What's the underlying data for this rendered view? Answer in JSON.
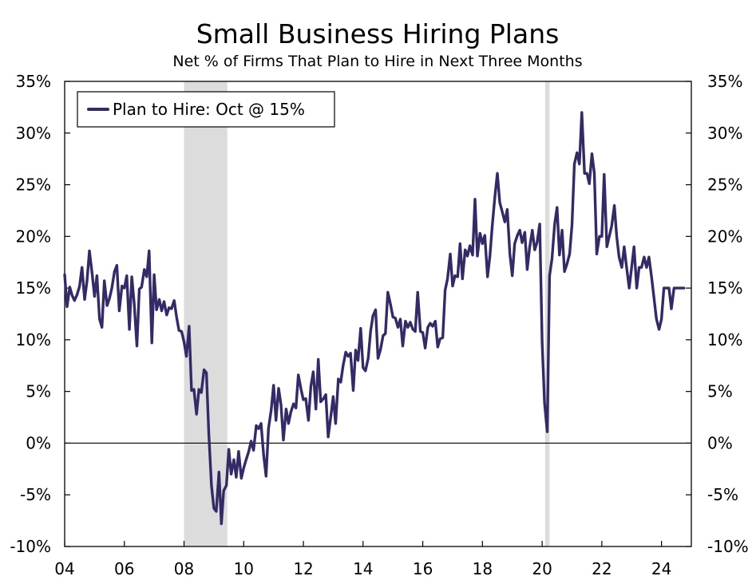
{
  "chart_data": {
    "type": "line",
    "title": "Small Business Hiring Plans",
    "subtitle": "Net % of Firms That Plan to Hire in Next Three Months",
    "xlabel": "",
    "ylabel": "",
    "xlim": [
      2004.0,
      2025.0
    ],
    "ylim": [
      -10,
      35
    ],
    "x_ticks": [
      {
        "value": 2004,
        "label": "04"
      },
      {
        "value": 2006,
        "label": "06"
      },
      {
        "value": 2008,
        "label": "08"
      },
      {
        "value": 2010,
        "label": "10"
      },
      {
        "value": 2012,
        "label": "12"
      },
      {
        "value": 2014,
        "label": "14"
      },
      {
        "value": 2016,
        "label": "16"
      },
      {
        "value": 2018,
        "label": "18"
      },
      {
        "value": 2020,
        "label": "20"
      },
      {
        "value": 2022,
        "label": "22"
      },
      {
        "value": 2024,
        "label": "24"
      }
    ],
    "y_ticks": [
      {
        "value": 35,
        "label": "35%"
      },
      {
        "value": 30,
        "label": "30%"
      },
      {
        "value": 25,
        "label": "25%"
      },
      {
        "value": 20,
        "label": "20%"
      },
      {
        "value": 15,
        "label": "15%"
      },
      {
        "value": 10,
        "label": "10%"
      },
      {
        "value": 5,
        "label": "5%"
      },
      {
        "value": 0,
        "label": "0%"
      },
      {
        "value": -5,
        "label": "-5%"
      },
      {
        "value": -10,
        "label": "-10%"
      }
    ],
    "grid": false,
    "zero_line": true,
    "legend_position": "top-left",
    "colors": {
      "series": "#332a66",
      "recession": "#dcdcdc"
    },
    "recession_shading": [
      [
        2008.0,
        2009.45
      ],
      [
        2020.1,
        2020.25
      ]
    ],
    "series": [
      {
        "name": "Plan to Hire: Oct @ 15%",
        "points": [
          [
            2004.0,
            16.3
          ],
          [
            2004.08,
            13.2
          ],
          [
            2004.17,
            15.1
          ],
          [
            2004.25,
            14.3
          ],
          [
            2004.33,
            13.8
          ],
          [
            2004.42,
            14.4
          ],
          [
            2004.5,
            15.2
          ],
          [
            2004.58,
            17.0
          ],
          [
            2004.67,
            13.9
          ],
          [
            2004.75,
            15.7
          ],
          [
            2004.83,
            18.6
          ],
          [
            2004.92,
            16.4
          ],
          [
            2005.0,
            14.2
          ],
          [
            2005.08,
            16.2
          ],
          [
            2005.17,
            12.0
          ],
          [
            2005.25,
            11.2
          ],
          [
            2005.33,
            15.7
          ],
          [
            2005.42,
            13.3
          ],
          [
            2005.5,
            14.0
          ],
          [
            2005.58,
            15.0
          ],
          [
            2005.67,
            16.6
          ],
          [
            2005.75,
            17.2
          ],
          [
            2005.83,
            12.8
          ],
          [
            2005.92,
            15.2
          ],
          [
            2006.0,
            15.0
          ],
          [
            2006.08,
            16.2
          ],
          [
            2006.17,
            11.0
          ],
          [
            2006.25,
            16.1
          ],
          [
            2006.33,
            13.5
          ],
          [
            2006.42,
            9.4
          ],
          [
            2006.5,
            14.9
          ],
          [
            2006.58,
            15.1
          ],
          [
            2006.67,
            16.8
          ],
          [
            2006.75,
            16.1
          ],
          [
            2006.83,
            18.6
          ],
          [
            2006.92,
            9.7
          ],
          [
            2007.0,
            16.3
          ],
          [
            2007.08,
            12.9
          ],
          [
            2007.17,
            13.9
          ],
          [
            2007.25,
            12.8
          ],
          [
            2007.33,
            13.7
          ],
          [
            2007.42,
            12.4
          ],
          [
            2007.5,
            13.1
          ],
          [
            2007.58,
            13.0
          ],
          [
            2007.67,
            13.8
          ],
          [
            2007.75,
            12.2
          ],
          [
            2007.83,
            10.9
          ],
          [
            2007.92,
            10.8
          ],
          [
            2008.0,
            9.8
          ],
          [
            2008.08,
            8.4
          ],
          [
            2008.17,
            11.3
          ],
          [
            2008.25,
            5.1
          ],
          [
            2008.33,
            5.2
          ],
          [
            2008.42,
            2.8
          ],
          [
            2008.5,
            5.2
          ],
          [
            2008.58,
            4.9
          ],
          [
            2008.67,
            7.1
          ],
          [
            2008.75,
            6.8
          ],
          [
            2008.83,
            1.0
          ],
          [
            2008.92,
            -4.1
          ],
          [
            2009.0,
            -6.3
          ],
          [
            2009.08,
            -6.6
          ],
          [
            2009.17,
            -2.8
          ],
          [
            2009.25,
            -7.8
          ],
          [
            2009.33,
            -4.6
          ],
          [
            2009.42,
            -4.1
          ],
          [
            2009.5,
            -0.6
          ],
          [
            2009.58,
            -3.0
          ],
          [
            2009.67,
            -1.6
          ],
          [
            2009.75,
            -3.3
          ],
          [
            2009.83,
            -0.8
          ],
          [
            2009.92,
            -3.4
          ],
          [
            2010.0,
            -2.4
          ],
          [
            2010.08,
            -1.6
          ],
          [
            2010.17,
            -0.8
          ],
          [
            2010.25,
            0.2
          ],
          [
            2010.33,
            -0.7
          ],
          [
            2010.42,
            1.7
          ],
          [
            2010.5,
            1.4
          ],
          [
            2010.58,
            1.9
          ],
          [
            2010.67,
            -1.2
          ],
          [
            2010.75,
            -3.2
          ],
          [
            2010.83,
            1.4
          ],
          [
            2010.92,
            3.2
          ],
          [
            2011.0,
            5.6
          ],
          [
            2011.08,
            2.2
          ],
          [
            2011.17,
            5.3
          ],
          [
            2011.25,
            3.7
          ],
          [
            2011.33,
            0.3
          ],
          [
            2011.42,
            3.3
          ],
          [
            2011.5,
            1.9
          ],
          [
            2011.58,
            3.0
          ],
          [
            2011.67,
            3.8
          ],
          [
            2011.75,
            3.4
          ],
          [
            2011.83,
            6.6
          ],
          [
            2011.92,
            5.2
          ],
          [
            2012.0,
            4.2
          ],
          [
            2012.08,
            4.3
          ],
          [
            2012.17,
            2.2
          ],
          [
            2012.25,
            5.5
          ],
          [
            2012.33,
            6.9
          ],
          [
            2012.42,
            3.3
          ],
          [
            2012.5,
            8.1
          ],
          [
            2012.58,
            4.0
          ],
          [
            2012.67,
            4.3
          ],
          [
            2012.75,
            4.7
          ],
          [
            2012.83,
            0.6
          ],
          [
            2012.92,
            2.6
          ],
          [
            2013.0,
            4.5
          ],
          [
            2013.08,
            1.9
          ],
          [
            2013.17,
            6.2
          ],
          [
            2013.25,
            5.9
          ],
          [
            2013.33,
            7.5
          ],
          [
            2013.42,
            8.8
          ],
          [
            2013.5,
            8.4
          ],
          [
            2013.58,
            8.7
          ],
          [
            2013.67,
            5.1
          ],
          [
            2013.75,
            9.0
          ],
          [
            2013.83,
            8.0
          ],
          [
            2013.92,
            11.1
          ],
          [
            2014.0,
            7.3
          ],
          [
            2014.08,
            7.0
          ],
          [
            2014.17,
            8.2
          ],
          [
            2014.25,
            10.8
          ],
          [
            2014.33,
            12.3
          ],
          [
            2014.42,
            12.9
          ],
          [
            2014.5,
            8.2
          ],
          [
            2014.58,
            9.0
          ],
          [
            2014.67,
            10.4
          ],
          [
            2014.75,
            10.6
          ],
          [
            2014.83,
            14.6
          ],
          [
            2014.92,
            13.4
          ],
          [
            2015.0,
            12.2
          ],
          [
            2015.08,
            12.1
          ],
          [
            2015.17,
            11.2
          ],
          [
            2015.25,
            12.0
          ],
          [
            2015.33,
            9.4
          ],
          [
            2015.42,
            11.8
          ],
          [
            2015.5,
            11.2
          ],
          [
            2015.58,
            11.7
          ],
          [
            2015.67,
            11.0
          ],
          [
            2015.75,
            10.8
          ],
          [
            2015.83,
            14.6
          ],
          [
            2015.92,
            10.8
          ],
          [
            2016.0,
            10.7
          ],
          [
            2016.08,
            9.2
          ],
          [
            2016.17,
            11.2
          ],
          [
            2016.25,
            11.6
          ],
          [
            2016.33,
            11.3
          ],
          [
            2016.42,
            11.8
          ],
          [
            2016.5,
            9.3
          ],
          [
            2016.58,
            10.1
          ],
          [
            2016.67,
            10.2
          ],
          [
            2016.75,
            14.8
          ],
          [
            2016.83,
            15.9
          ],
          [
            2016.92,
            18.3
          ],
          [
            2017.0,
            15.2
          ],
          [
            2017.08,
            16.2
          ],
          [
            2017.17,
            16.1
          ],
          [
            2017.25,
            19.3
          ],
          [
            2017.33,
            15.9
          ],
          [
            2017.42,
            18.7
          ],
          [
            2017.5,
            18.1
          ],
          [
            2017.58,
            19.1
          ],
          [
            2017.67,
            18.2
          ],
          [
            2017.75,
            23.6
          ],
          [
            2017.83,
            18.1
          ],
          [
            2017.92,
            20.3
          ],
          [
            2018.0,
            19.3
          ],
          [
            2018.08,
            20.1
          ],
          [
            2018.17,
            16.1
          ],
          [
            2018.25,
            18.1
          ],
          [
            2018.33,
            21.1
          ],
          [
            2018.42,
            23.9
          ],
          [
            2018.5,
            26.1
          ],
          [
            2018.58,
            23.3
          ],
          [
            2018.67,
            22.3
          ],
          [
            2018.75,
            21.4
          ],
          [
            2018.83,
            22.6
          ],
          [
            2018.92,
            18.3
          ],
          [
            2019.0,
            16.2
          ],
          [
            2019.08,
            19.3
          ],
          [
            2019.17,
            20.1
          ],
          [
            2019.25,
            20.6
          ],
          [
            2019.33,
            19.4
          ],
          [
            2019.42,
            20.4
          ],
          [
            2019.5,
            16.8
          ],
          [
            2019.58,
            18.9
          ],
          [
            2019.67,
            20.6
          ],
          [
            2019.75,
            18.7
          ],
          [
            2019.83,
            19.4
          ],
          [
            2019.92,
            21.2
          ],
          [
            2020.0,
            9.8
          ],
          [
            2020.08,
            3.9
          ],
          [
            2020.17,
            1.1
          ],
          [
            2020.25,
            16.2
          ],
          [
            2020.33,
            17.8
          ],
          [
            2020.42,
            21.2
          ],
          [
            2020.5,
            22.8
          ],
          [
            2020.58,
            18.2
          ],
          [
            2020.67,
            20.6
          ],
          [
            2020.75,
            16.6
          ],
          [
            2020.83,
            17.3
          ],
          [
            2020.92,
            18.3
          ],
          [
            2021.0,
            21.1
          ],
          [
            2021.08,
            27.0
          ],
          [
            2021.17,
            28.1
          ],
          [
            2021.25,
            27.0
          ],
          [
            2021.33,
            32.0
          ],
          [
            2021.42,
            26.1
          ],
          [
            2021.5,
            26.1
          ],
          [
            2021.58,
            25.1
          ],
          [
            2021.67,
            28.0
          ],
          [
            2021.75,
            26.1
          ],
          [
            2021.83,
            18.3
          ],
          [
            2021.92,
            20.0
          ],
          [
            2022.0,
            20.0
          ],
          [
            2022.08,
            26.0
          ],
          [
            2022.17,
            19.0
          ],
          [
            2022.25,
            20.0
          ],
          [
            2022.33,
            21.0
          ],
          [
            2022.42,
            23.0
          ],
          [
            2022.5,
            20.0
          ],
          [
            2022.58,
            18.0
          ],
          [
            2022.67,
            17.0
          ],
          [
            2022.75,
            19.0
          ],
          [
            2022.83,
            17.0
          ],
          [
            2022.92,
            15.0
          ],
          [
            2023.0,
            17.0
          ],
          [
            2023.08,
            19.0
          ],
          [
            2023.17,
            15.0
          ],
          [
            2023.25,
            17.0
          ],
          [
            2023.33,
            17.0
          ],
          [
            2023.42,
            18.0
          ],
          [
            2023.5,
            17.0
          ],
          [
            2023.58,
            18.0
          ],
          [
            2023.67,
            16.0
          ],
          [
            2023.75,
            14.0
          ],
          [
            2023.83,
            12.0
          ],
          [
            2023.92,
            11.0
          ],
          [
            2024.0,
            12.0
          ],
          [
            2024.08,
            15.0
          ],
          [
            2024.17,
            15.0
          ],
          [
            2024.25,
            15.0
          ],
          [
            2024.33,
            13.0
          ],
          [
            2024.42,
            15.0
          ],
          [
            2024.5,
            15.0
          ],
          [
            2024.58,
            15.0
          ],
          [
            2024.67,
            15.0
          ],
          [
            2024.75,
            15.0
          ]
        ]
      }
    ]
  }
}
